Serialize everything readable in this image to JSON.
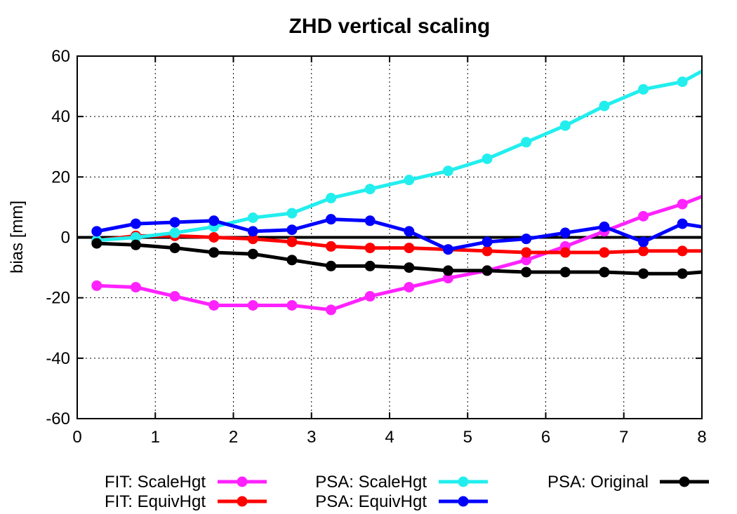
{
  "chart_data": {
    "type": "line",
    "title": "ZHD vertical scaling",
    "xlabel": "",
    "ylabel": "bias [mm]",
    "xlim": [
      0,
      8
    ],
    "ylim": [
      -60,
      60
    ],
    "xticks": [
      0,
      1,
      2,
      3,
      4,
      5,
      6,
      7,
      8
    ],
    "yticks": [
      -60,
      -40,
      -20,
      0,
      20,
      40,
      60
    ],
    "grid": true,
    "legend_position": "bottom",
    "x": [
      0.25,
      0.75,
      1.25,
      1.75,
      2.25,
      2.75,
      3.25,
      3.75,
      4.25,
      4.75,
      5.25,
      5.75,
      6.25,
      6.75,
      7.25,
      7.75,
      8.0
    ],
    "series": [
      {
        "name": "FIT: ScaleHgt",
        "color": "#ff22ff",
        "values": [
          -16,
          -16.5,
          -19.5,
          -22.5,
          -22.5,
          -22.5,
          -24,
          -19.5,
          -16.5,
          -13.5,
          -11,
          -7.5,
          -3,
          2,
          7,
          11,
          13.5
        ]
      },
      {
        "name": "FIT: EquivHgt",
        "color": "#ff0000",
        "values": [
          -1,
          0.5,
          0.5,
          0,
          -0.5,
          -1.5,
          -3,
          -3.5,
          -3.5,
          -4,
          -4.5,
          -5,
          -5,
          -5,
          -4.5,
          -4.5,
          -4.5
        ]
      },
      {
        "name": "PSA: ScaleHgt",
        "color": "#22eeee",
        "values": [
          -1,
          0,
          1.5,
          3.5,
          6.5,
          8,
          13,
          16,
          19,
          22,
          26,
          31.5,
          37,
          43.5,
          49,
          51.5,
          55
        ]
      },
      {
        "name": "PSA: EquivHgt",
        "color": "#0000ff",
        "values": [
          2,
          4.5,
          5,
          5.5,
          2,
          2.5,
          6,
          5.5,
          2,
          -4,
          -1.5,
          -0.5,
          1.5,
          3.5,
          -1.5,
          4.5,
          3.5
        ]
      },
      {
        "name": "PSA: Original",
        "color": "#000000",
        "values": [
          -2,
          -2.5,
          -3.5,
          -5,
          -5.5,
          -7.5,
          -9.5,
          -9.5,
          -10,
          -11,
          -11,
          -11.5,
          -11.5,
          -11.5,
          -12,
          -12,
          -11.5
        ]
      }
    ]
  }
}
